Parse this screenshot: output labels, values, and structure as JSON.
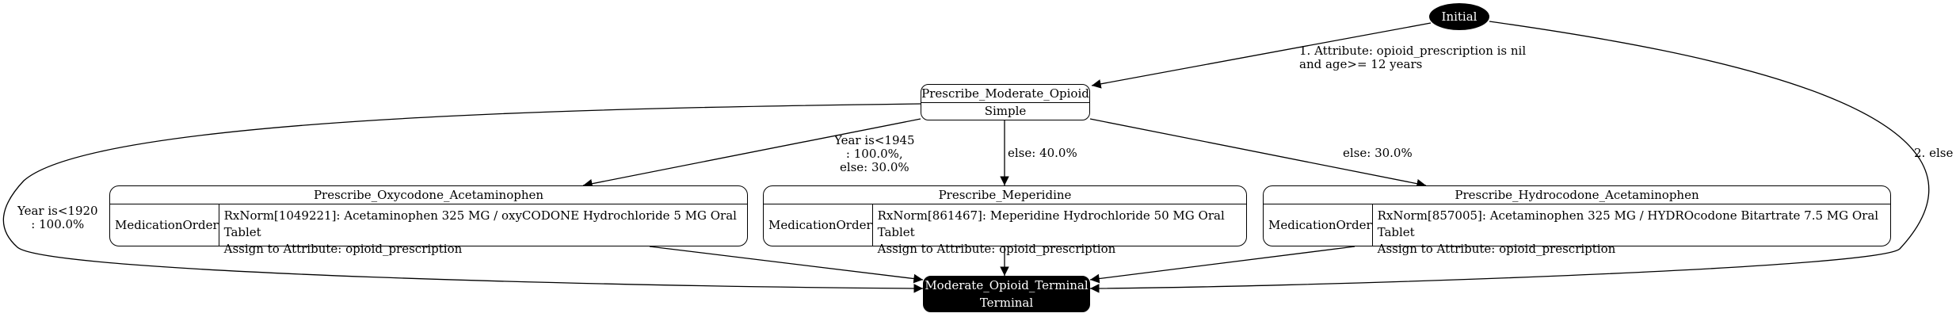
{
  "nodes": {
    "initial": {
      "label": "Initial"
    },
    "moderate": {
      "title": "Prescribe_Moderate_Opioid",
      "type": "Simple"
    },
    "oxy": {
      "title": "Prescribe_Oxycodone_Acetaminophen",
      "kind": "MedicationOrder",
      "code": "RxNorm[1049221]: Acetaminophen 325 MG / oxyCODONE Hydrochloride 5 MG Oral Tablet",
      "assign": "Assign to Attribute: opioid_prescription"
    },
    "mep": {
      "title": "Prescribe_Meperidine",
      "kind": "MedicationOrder",
      "code": "RxNorm[861467]: Meperidine Hydrochloride 50 MG Oral Tablet",
      "assign": "Assign to Attribute: opioid_prescription"
    },
    "hydro": {
      "title": "Prescribe_Hydrocodone_Acetaminophen",
      "kind": "MedicationOrder",
      "code": "RxNorm[857005]: Acetaminophen 325 MG / HYDROcodone Bitartrate 7.5 MG Oral Tablet",
      "assign": "Assign to Attribute: opioid_prescription"
    },
    "terminal": {
      "title": "Moderate_Opioid_Terminal",
      "type": "Terminal"
    }
  },
  "edges": {
    "cond1": "1. Attribute: opioid_prescription is nil\nand age>= 12 years",
    "else2": "2. else",
    "year1945": "Year is<1945\n: 100.0%,\nelse: 30.0%",
    "else40": "else: 40.0%",
    "else30": "else: 30.0%",
    "year1920": "Year is<1920\n: 100.0%"
  }
}
